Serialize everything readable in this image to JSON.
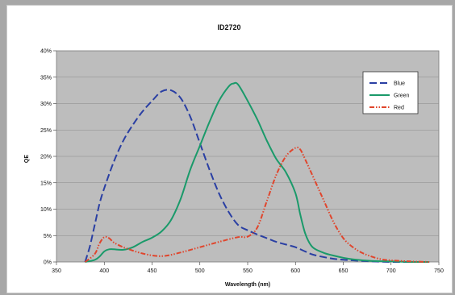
{
  "chart_data": {
    "type": "line",
    "title": "ID2720",
    "xlabel": "Wavelength (nm)",
    "ylabel": "QE",
    "xlim": [
      350,
      750
    ],
    "ylim": [
      0,
      40
    ],
    "x_ticks": [
      350,
      400,
      450,
      500,
      550,
      600,
      650,
      700,
      750
    ],
    "y_ticks": [
      0,
      5,
      10,
      15,
      20,
      25,
      30,
      35,
      40
    ],
    "y_tick_labels": [
      "0%",
      "5%",
      "10%",
      "15%",
      "20%",
      "25%",
      "30%",
      "35%",
      "40%"
    ],
    "grid": "horizontal",
    "legend_position": "top-right",
    "series": [
      {
        "name": "Blue",
        "color": "#2a3fa3",
        "dash": "dashed",
        "x": [
          380,
          385,
          390,
          395,
          400,
          410,
          420,
          430,
          440,
          450,
          460,
          470,
          480,
          490,
          500,
          510,
          520,
          530,
          540,
          550,
          560,
          570,
          580,
          590,
          600,
          610,
          620,
          640,
          660,
          680,
          700,
          720,
          740
        ],
        "y": [
          0,
          3,
          7,
          11,
          14,
          19,
          23,
          26,
          28.5,
          30.5,
          32.3,
          32.5,
          31,
          27.5,
          22.5,
          17.5,
          13,
          9.5,
          7,
          6,
          5.2,
          4.5,
          3.8,
          3.3,
          2.8,
          2.0,
          1.3,
          0.6,
          0.3,
          0.1,
          0,
          0,
          0
        ]
      },
      {
        "name": "Green",
        "color": "#1a9a6a",
        "dash": "solid",
        "x": [
          380,
          390,
          395,
          400,
          405,
          410,
          420,
          430,
          440,
          450,
          460,
          470,
          480,
          490,
          500,
          510,
          520,
          530,
          535,
          540,
          550,
          560,
          570,
          580,
          590,
          600,
          605,
          610,
          615,
          620,
          630,
          640,
          650,
          660,
          680,
          700,
          720,
          740
        ],
        "y": [
          0,
          0.4,
          1.0,
          2.0,
          2.4,
          2.4,
          2.3,
          2.8,
          3.8,
          4.6,
          5.8,
          8.0,
          12,
          17.5,
          22,
          26.5,
          30.5,
          33.2,
          33.8,
          33.6,
          30.5,
          27,
          23,
          19.5,
          17,
          13,
          9,
          5.5,
          3.5,
          2.5,
          1.7,
          1.2,
          0.8,
          0.5,
          0.2,
          0.1,
          0,
          0
        ]
      },
      {
        "name": "Red",
        "color": "#e0452c",
        "dash": "dash-dot-dot",
        "x": [
          380,
          390,
          395,
          400,
          405,
          410,
          420,
          440,
          460,
          480,
          500,
          520,
          540,
          550,
          560,
          570,
          580,
          590,
          600,
          605,
          610,
          620,
          630,
          640,
          650,
          660,
          670,
          680,
          690,
          700,
          720,
          740
        ],
        "y": [
          0,
          1.5,
          3.5,
          4.7,
          4.5,
          3.7,
          2.8,
          1.6,
          1.1,
          1.8,
          2.8,
          3.8,
          4.7,
          4.8,
          6.5,
          11.5,
          16.5,
          20,
          21.6,
          21.3,
          19.5,
          15.5,
          11.5,
          7.5,
          4.5,
          2.8,
          1.7,
          1.0,
          0.5,
          0.3,
          0.1,
          0
        ]
      }
    ]
  }
}
